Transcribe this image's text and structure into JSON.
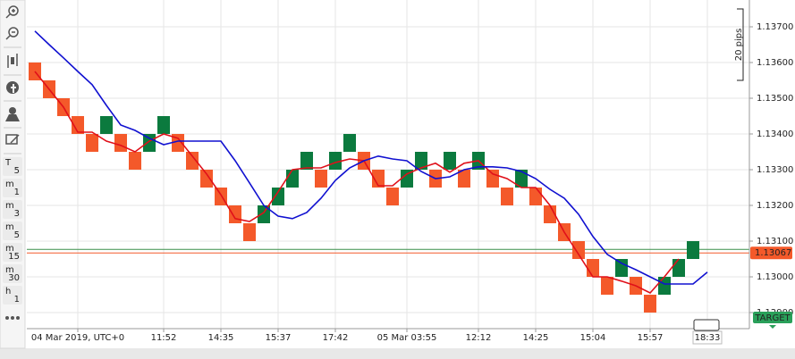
{
  "chart_data": {
    "type": "renko",
    "categories": [
      null,
      null,
      null,
      "04 Mar 2019, UTC+0",
      null,
      null,
      null,
      null,
      null,
      "11:52",
      null,
      null,
      null,
      "14:35",
      null,
      null,
      null,
      "15:37",
      null,
      null,
      null,
      "17:42",
      null,
      null,
      null,
      null,
      "05 Mar 03:55",
      null,
      null,
      null,
      null,
      "12:12",
      null,
      null,
      null,
      "14:25",
      null,
      null,
      null,
      "15:04",
      null,
      null,
      null,
      "15:57",
      null,
      null,
      null,
      "18:33"
    ],
    "bricks": {
      "up_color": "#0b7a3e",
      "down_color": "#f4592a",
      "open": [
        1.136,
        1.1355,
        1.135,
        1.1345,
        1.134,
        1.134,
        1.134,
        1.1335,
        1.1335,
        1.134,
        1.134,
        1.1335,
        1.133,
        1.1325,
        1.132,
        1.1315,
        1.1315,
        1.132,
        1.1325,
        1.133,
        1.133,
        1.133,
        1.1335,
        1.1335,
        1.133,
        1.1325,
        1.1325,
        1.133,
        1.133,
        1.133,
        1.133,
        1.133,
        1.133,
        1.1325,
        1.1325,
        1.1325,
        1.132,
        1.1315,
        1.131,
        1.1305,
        1.13,
        1.13,
        1.13,
        1.1295,
        1.1295,
        1.13,
        1.1305,
        null
      ],
      "close": [
        1.1355,
        1.135,
        1.1345,
        1.134,
        1.1335,
        1.1345,
        1.1335,
        1.133,
        1.134,
        1.1345,
        1.1335,
        1.133,
        1.1325,
        1.132,
        1.1315,
        1.131,
        1.132,
        1.1325,
        1.133,
        1.1335,
        1.1325,
        1.1335,
        1.134,
        1.133,
        1.1325,
        1.132,
        1.133,
        1.1335,
        1.1325,
        1.1335,
        1.1325,
        1.1335,
        1.1325,
        1.132,
        1.133,
        1.132,
        1.1315,
        1.131,
        1.1305,
        1.13,
        1.1295,
        1.1305,
        1.1295,
        1.129,
        1.13,
        1.1305,
        1.131,
        null
      ]
    },
    "lines": [
      {
        "color": "#e0101a",
        "values": [
          1.13575,
          1.13525,
          1.13475,
          1.13405,
          1.13405,
          1.1338,
          1.13368,
          1.1335,
          1.1338,
          1.134,
          1.13388,
          1.13338,
          1.13288,
          1.1323,
          1.13163,
          1.13155,
          1.1318,
          1.13238,
          1.133,
          1.13305,
          1.13305,
          1.1332,
          1.1333,
          1.13325,
          1.13255,
          1.13255,
          1.13288,
          1.13305,
          1.13318,
          1.13293,
          1.13318,
          1.13325,
          1.13288,
          1.13275,
          1.1325,
          1.1325,
          1.132,
          1.13125,
          1.13063,
          1.13,
          1.13,
          1.12988,
          1.12975,
          1.12955,
          1.13,
          1.1305,
          null,
          null
        ]
      },
      {
        "color": "#1010d0",
        "values": [
          1.13688,
          1.1365,
          1.13613,
          1.13575,
          1.13538,
          1.1348,
          1.13425,
          1.1341,
          1.13388,
          1.1337,
          1.1338,
          1.1338,
          1.1338,
          1.1338,
          1.13325,
          1.13263,
          1.132,
          1.1317,
          1.13163,
          1.1318,
          1.1322,
          1.1327,
          1.13305,
          1.13325,
          1.13338,
          1.1333,
          1.13325,
          1.13295,
          1.13275,
          1.1328,
          1.133,
          1.13308,
          1.13308,
          1.13305,
          1.13295,
          1.13275,
          1.13245,
          1.1322,
          1.13175,
          1.13113,
          1.13063,
          1.13038,
          1.1302,
          1.13,
          1.1298,
          1.1298,
          1.1298,
          1.13013
        ]
      }
    ],
    "ylim": [
      1.12855,
      1.13775
    ],
    "yticks": [
      {
        "value": 1.137,
        "label": "1.13700"
      },
      {
        "value": 1.136,
        "label": "1.13600"
      },
      {
        "value": 1.135,
        "label": "1.13500"
      },
      {
        "value": 1.134,
        "label": "1.13400"
      },
      {
        "value": 1.133,
        "label": "1.13300"
      },
      {
        "value": 1.132,
        "label": "1.13200"
      },
      {
        "value": 1.131,
        "label": "1.13100"
      },
      {
        "value": 1.13,
        "label": "1.13000"
      },
      {
        "value": 1.129,
        "label": "1.12900"
      }
    ],
    "grid": true,
    "price_lines": [
      {
        "value": 1.13077,
        "color": "#3a8f4a"
      },
      {
        "value": 1.13067,
        "color": "#f4592a"
      }
    ],
    "ruler": {
      "label": "20 pips",
      "top": 1.1375,
      "bottom": 1.1355
    },
    "target_label": "TARGET"
  },
  "toolbar": {
    "timeframes": [
      {
        "unit": "T",
        "count": "5"
      },
      {
        "unit": "m",
        "count": "1"
      },
      {
        "unit": "m",
        "count": "3"
      },
      {
        "unit": "m",
        "count": "5"
      },
      {
        "unit": "m",
        "count": "15"
      },
      {
        "unit": "m",
        "count": "30"
      },
      {
        "unit": "h",
        "count": "1"
      }
    ]
  }
}
